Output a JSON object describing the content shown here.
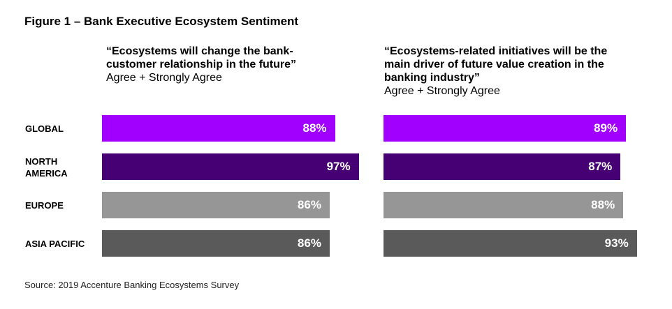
{
  "title": "Figure 1 – Bank Executive Ecosystem Sentiment",
  "source": "Source: 2019 Accenture Banking Ecosystems Survey",
  "chart_data": [
    {
      "type": "bar",
      "orientation": "horizontal",
      "title": "“Ecosystems will change the bank-customer relationship in the future”",
      "subtitle": "Agree + Strongly Agree",
      "categories": [
        "GLOBAL",
        "NORTH AMERICA",
        "EUROPE",
        "ASIA PACIFIC"
      ],
      "values": [
        88,
        97,
        86,
        86
      ],
      "labels": [
        "88%",
        "97%",
        "86%",
        "86%"
      ],
      "colors": [
        "#a100ff",
        "#460073",
        "#969696",
        "#5a5a5a"
      ]
    },
    {
      "type": "bar",
      "orientation": "horizontal",
      "title": "“Ecosystems-related initiatives will be the main driver of future value creation in the banking industry”",
      "subtitle": "Agree + Strongly Agree",
      "categories": [
        "GLOBAL",
        "NORTH AMERICA",
        "EUROPE",
        "ASIA PACIFIC"
      ],
      "values": [
        89,
        87,
        88,
        93
      ],
      "labels": [
        "89%",
        "87%",
        "88%",
        "93%"
      ],
      "colors": [
        "#a100ff",
        "#460073",
        "#969696",
        "#5a5a5a"
      ]
    }
  ]
}
